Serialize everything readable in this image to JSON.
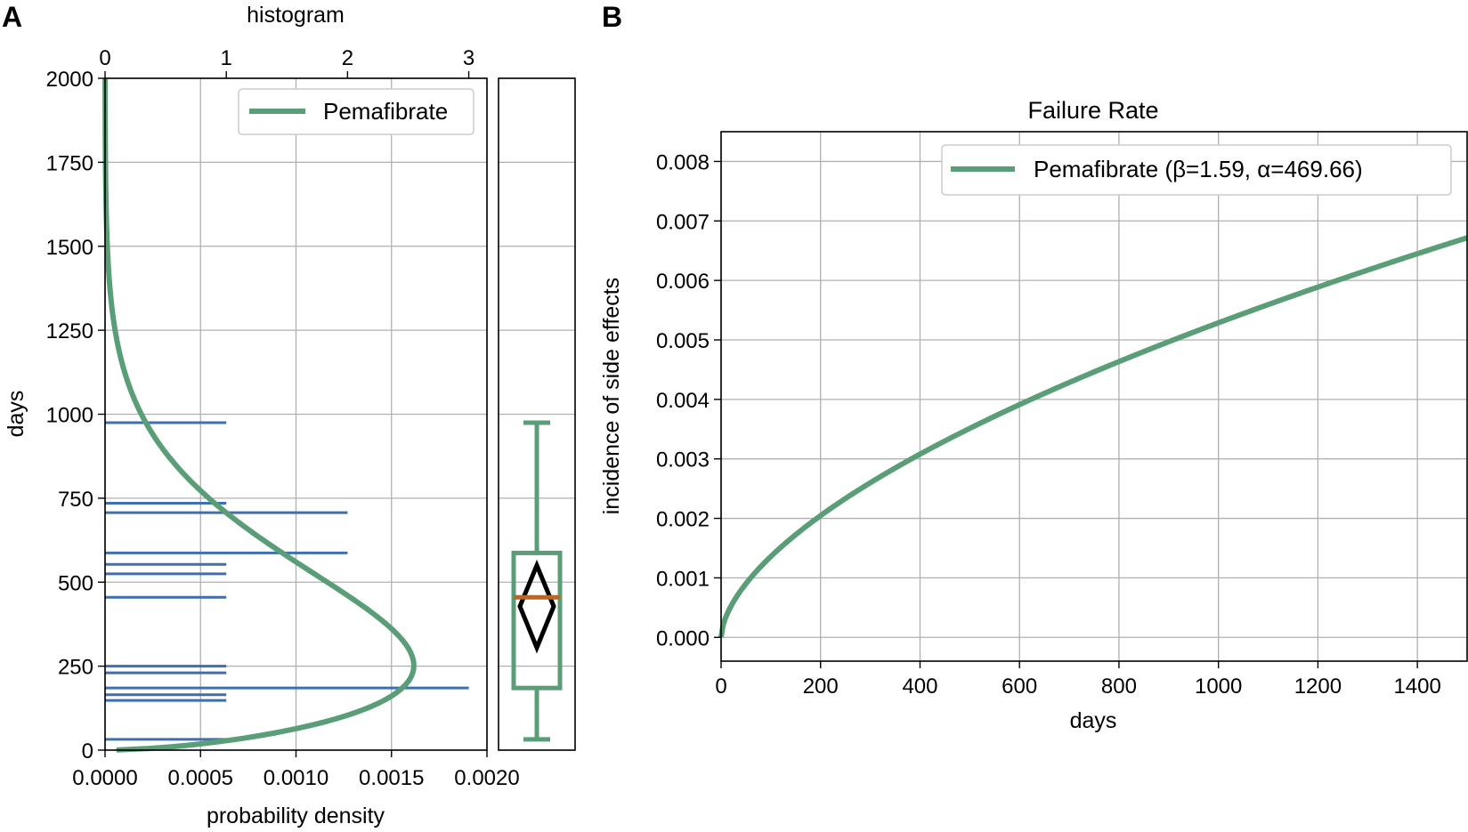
{
  "chart_data": [
    {
      "panel_label": "A",
      "type": "line",
      "orientation": "horizontal",
      "xlabel": "probability density",
      "ylabel": "days",
      "top_xlabel": "histogram",
      "xlim": [
        0,
        0.002
      ],
      "ylim": [
        0,
        2000
      ],
      "x_ticks": [
        "0.0000",
        "0.0005",
        "0.0010",
        "0.0015",
        "0.0020"
      ],
      "y_ticks": [
        "0",
        "250",
        "500",
        "750",
        "1000",
        "1250",
        "1500",
        "1750",
        "2000"
      ],
      "top_xlim": [
        0,
        3.15
      ],
      "top_ticks": [
        "0",
        "1",
        "2",
        "3"
      ],
      "grid": true,
      "legend": {
        "placement": "top-right",
        "entries": [
          "Pemafibrate"
        ]
      },
      "colors": {
        "curve": "#5a9e78",
        "histogram": "#3f6fb0"
      },
      "series": [
        {
          "name": "Pemafibrate",
          "distribution": "weibull",
          "beta": 1.59,
          "alpha": 469.66
        }
      ],
      "histogram": {
        "days": [
          32,
          148,
          165,
          185,
          230,
          250,
          455,
          525,
          553,
          587,
          707,
          735,
          975
        ],
        "counts": [
          1,
          1,
          1,
          3,
          1,
          1,
          1,
          1,
          1,
          2,
          2,
          1,
          1
        ]
      }
    },
    {
      "panel_label": "",
      "type": "boxplot",
      "orientation": "vertical",
      "ylim": [
        0,
        2000
      ],
      "colors": {
        "box": "#5a9e78",
        "median": "#c0651f",
        "mean_ci": "#000000"
      },
      "box": {
        "whisker_low": 32,
        "q1": 185,
        "median": 455,
        "q3": 587,
        "whisker_high": 975
      },
      "mean_diamond": {
        "low": 305,
        "center": 428,
        "high": 550
      }
    },
    {
      "panel_label": "B",
      "type": "line",
      "title": "Failure Rate",
      "xlabel": "days",
      "ylabel": "incidence of side effects",
      "xlim": [
        0,
        1500
      ],
      "ylim": [
        -0.0004,
        0.0085
      ],
      "x_ticks": [
        "0",
        "200",
        "400",
        "600",
        "800",
        "1000",
        "1200",
        "1400"
      ],
      "y_ticks": [
        "0.000",
        "0.001",
        "0.002",
        "0.003",
        "0.004",
        "0.005",
        "0.006",
        "0.007",
        "0.008"
      ],
      "grid": true,
      "legend": {
        "placement": "top-right",
        "entries": [
          "Pemafibrate (β=1.59, α=469.66)"
        ]
      },
      "colors": {
        "curve": "#5a9e78"
      },
      "series": [
        {
          "name": "Pemafibrate (β=1.59, α=469.66)",
          "function": "weibull_hazard",
          "beta": 1.59,
          "alpha": 469.66
        }
      ]
    }
  ]
}
